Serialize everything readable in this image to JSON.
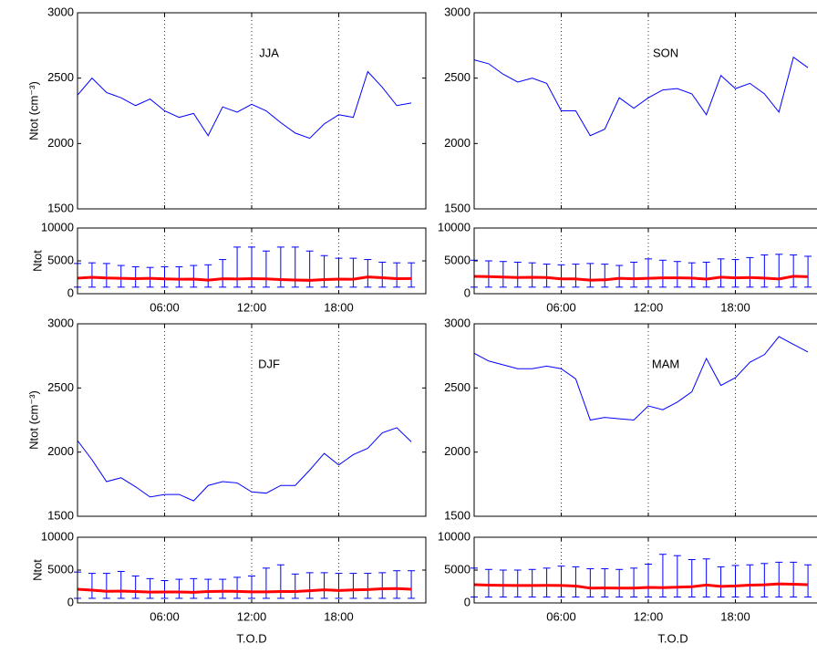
{
  "chart_data": [
    {
      "type": "line",
      "title": "JJA",
      "ylabel": "Ntot (cm⁻³)",
      "color": "#0000ff",
      "xlim": [
        0,
        24
      ],
      "ylim": [
        1500,
        3000
      ],
      "xticks": [
        6,
        12,
        18
      ],
      "yticks": [
        1500,
        2000,
        2500,
        3000
      ],
      "xgrid": true,
      "show_xtick_labels": false,
      "x": [
        0,
        1,
        2,
        3,
        4,
        5,
        6,
        7,
        8,
        9,
        10,
        11,
        12,
        13,
        14,
        15,
        16,
        17,
        18,
        19,
        20,
        21,
        22,
        23
      ],
      "values": [
        2370,
        2500,
        2390,
        2350,
        2290,
        2340,
        2250,
        2200,
        2230,
        2060,
        2280,
        2240,
        2300,
        2250,
        2160,
        2080,
        2040,
        2150,
        2220,
        2200,
        2550,
        2430,
        2290,
        2310
      ]
    },
    {
      "type": "errorbar",
      "ylabel": "Ntot",
      "color": "#ff0000",
      "error_color": "#0000ff",
      "xlim": [
        0,
        24
      ],
      "ylim": [
        0,
        10000
      ],
      "xticks": [
        {
          "value": 6,
          "label": "06:00"
        },
        {
          "value": 12,
          "label": "12:00"
        },
        {
          "value": 18,
          "label": "18:00"
        }
      ],
      "yticks": [
        0,
        5000,
        10000
      ],
      "xgrid": true,
      "show_xtick_labels": true,
      "x": [
        0,
        1,
        2,
        3,
        4,
        5,
        6,
        7,
        8,
        9,
        10,
        11,
        12,
        13,
        14,
        15,
        16,
        17,
        18,
        19,
        20,
        21,
        22,
        23
      ],
      "values": [
        2370,
        2500,
        2390,
        2350,
        2290,
        2340,
        2250,
        2200,
        2230,
        2060,
        2280,
        2240,
        2300,
        2250,
        2160,
        2080,
        2040,
        2150,
        2220,
        2200,
        2550,
        2430,
        2290,
        2310
      ],
      "low": [
        1000,
        1000,
        1000,
        1000,
        1000,
        1000,
        1000,
        1000,
        1000,
        1000,
        1000,
        1000,
        1000,
        1000,
        1000,
        1000,
        1000,
        1000,
        1000,
        1000,
        1000,
        1000,
        1000,
        1000
      ],
      "high": [
        4600,
        4700,
        4600,
        4300,
        4100,
        4000,
        4100,
        4100,
        4300,
        4400,
        5200,
        7100,
        7100,
        6500,
        7100,
        7100,
        6500,
        5800,
        5400,
        5400,
        5200,
        4800,
        4700,
        4700
      ]
    },
    {
      "type": "line",
      "title": "SON",
      "color": "#0000ff",
      "xlim": [
        0,
        24
      ],
      "ylim": [
        1500,
        3000
      ],
      "xticks": [
        6,
        12,
        18
      ],
      "yticks": [
        1500,
        2000,
        2500,
        3000
      ],
      "xgrid": true,
      "show_xtick_labels": false,
      "x": [
        0,
        1,
        2,
        3,
        4,
        5,
        6,
        7,
        8,
        9,
        10,
        11,
        12,
        13,
        14,
        15,
        16,
        17,
        18,
        19,
        20,
        21,
        22,
        23
      ],
      "values": [
        2640,
        2610,
        2530,
        2470,
        2500,
        2460,
        2250,
        2250,
        2060,
        2110,
        2350,
        2270,
        2350,
        2410,
        2420,
        2380,
        2220,
        2520,
        2420,
        2460,
        2380,
        2240,
        2660,
        2580
      ]
    },
    {
      "type": "errorbar",
      "color": "#ff0000",
      "error_color": "#0000ff",
      "xlim": [
        0,
        24
      ],
      "ylim": [
        0,
        10000
      ],
      "xticks": [
        {
          "value": 6,
          "label": "06:00"
        },
        {
          "value": 12,
          "label": "12:00"
        },
        {
          "value": 18,
          "label": "18:00"
        }
      ],
      "yticks": [
        0,
        5000,
        10000
      ],
      "xgrid": true,
      "show_xtick_labels": true,
      "x": [
        0,
        1,
        2,
        3,
        4,
        5,
        6,
        7,
        8,
        9,
        10,
        11,
        12,
        13,
        14,
        15,
        16,
        17,
        18,
        19,
        20,
        21,
        22,
        23
      ],
      "values": [
        2640,
        2610,
        2530,
        2470,
        2500,
        2460,
        2250,
        2250,
        2060,
        2110,
        2350,
        2270,
        2350,
        2410,
        2420,
        2380,
        2220,
        2520,
        2420,
        2460,
        2380,
        2240,
        2660,
        2580
      ],
      "low": [
        1000,
        1000,
        1000,
        1000,
        1000,
        1000,
        1000,
        1000,
        1000,
        1000,
        1000,
        1000,
        1000,
        1000,
        1000,
        1000,
        1000,
        1000,
        1000,
        1000,
        1000,
        1000,
        1000,
        1000
      ],
      "high": [
        5100,
        5000,
        4900,
        4800,
        4700,
        4500,
        4400,
        4500,
        4600,
        4500,
        4300,
        4800,
        5300,
        5100,
        4900,
        4700,
        4800,
        5300,
        5200,
        5500,
        5900,
        6000,
        5900,
        5700
      ]
    },
    {
      "type": "line",
      "title": "DJF",
      "ylabel": "Ntot (cm⁻³)",
      "color": "#0000ff",
      "xlim": [
        0,
        24
      ],
      "ylim": [
        1500,
        3000
      ],
      "xticks": [
        6,
        12,
        18
      ],
      "yticks": [
        1500,
        2000,
        2500,
        3000
      ],
      "xgrid": true,
      "show_xtick_labels": false,
      "x": [
        0,
        1,
        2,
        3,
        4,
        5,
        6,
        7,
        8,
        9,
        10,
        11,
        12,
        13,
        14,
        15,
        16,
        17,
        18,
        19,
        20,
        21,
        22,
        23
      ],
      "values": [
        2090,
        1940,
        1770,
        1800,
        1730,
        1650,
        1670,
        1670,
        1620,
        1740,
        1770,
        1760,
        1690,
        1680,
        1740,
        1740,
        1860,
        1990,
        1900,
        1980,
        2030,
        2150,
        2190,
        2080
      ]
    },
    {
      "type": "errorbar",
      "ylabel": "Ntot",
      "xlabel": "T.O.D",
      "color": "#ff0000",
      "error_color": "#0000ff",
      "xlim": [
        0,
        24
      ],
      "ylim": [
        0,
        10000
      ],
      "xticks": [
        {
          "value": 6,
          "label": "06:00"
        },
        {
          "value": 12,
          "label": "12:00"
        },
        {
          "value": 18,
          "label": "18:00"
        }
      ],
      "yticks": [
        0,
        5000,
        10000
      ],
      "xgrid": true,
      "show_xtick_labels": true,
      "x": [
        0,
        1,
        2,
        3,
        4,
        5,
        6,
        7,
        8,
        9,
        10,
        11,
        12,
        13,
        14,
        15,
        16,
        17,
        18,
        19,
        20,
        21,
        22,
        23
      ],
      "values": [
        2090,
        1940,
        1770,
        1800,
        1730,
        1650,
        1670,
        1670,
        1620,
        1740,
        1770,
        1760,
        1690,
        1680,
        1740,
        1740,
        1860,
        1990,
        1900,
        1980,
        2030,
        2150,
        2190,
        2080
      ],
      "low": [
        700,
        700,
        700,
        700,
        700,
        700,
        700,
        700,
        700,
        700,
        700,
        700,
        700,
        700,
        700,
        700,
        700,
        700,
        700,
        700,
        700,
        700,
        700,
        700
      ],
      "high": [
        4700,
        4500,
        4500,
        4800,
        4100,
        3700,
        3400,
        3600,
        3700,
        3600,
        3600,
        3900,
        4100,
        5300,
        5800,
        4400,
        4600,
        4600,
        4500,
        4500,
        4500,
        4600,
        4900,
        4900
      ]
    },
    {
      "type": "line",
      "title": "MAM",
      "color": "#0000ff",
      "xlim": [
        0,
        24
      ],
      "ylim": [
        1500,
        3000
      ],
      "xticks": [
        6,
        12,
        18
      ],
      "yticks": [
        1500,
        2000,
        2500,
        3000
      ],
      "xgrid": true,
      "show_xtick_labels": false,
      "x": [
        0,
        1,
        2,
        3,
        4,
        5,
        6,
        7,
        8,
        9,
        10,
        11,
        12,
        13,
        14,
        15,
        16,
        17,
        18,
        19,
        20,
        21,
        22,
        23
      ],
      "values": [
        2770,
        2710,
        2680,
        2650,
        2650,
        2670,
        2650,
        2570,
        2250,
        2270,
        2260,
        2250,
        2360,
        2330,
        2390,
        2470,
        2730,
        2520,
        2580,
        2700,
        2760,
        2900,
        2840,
        2780
      ]
    },
    {
      "type": "errorbar",
      "xlabel": "T.O.D",
      "color": "#ff0000",
      "error_color": "#0000ff",
      "xlim": [
        0,
        24
      ],
      "ylim": [
        0,
        10000
      ],
      "xticks": [
        {
          "value": 6,
          "label": "06:00"
        },
        {
          "value": 12,
          "label": "12:00"
        },
        {
          "value": 18,
          "label": "18:00"
        }
      ],
      "yticks": [
        0,
        5000,
        10000
      ],
      "xgrid": true,
      "show_xtick_labels": true,
      "x": [
        0,
        1,
        2,
        3,
        4,
        5,
        6,
        7,
        8,
        9,
        10,
        11,
        12,
        13,
        14,
        15,
        16,
        17,
        18,
        19,
        20,
        21,
        22,
        23
      ],
      "values": [
        2770,
        2710,
        2680,
        2650,
        2650,
        2670,
        2650,
        2570,
        2250,
        2270,
        2260,
        2250,
        2360,
        2330,
        2390,
        2470,
        2730,
        2520,
        2580,
        2700,
        2760,
        2900,
        2840,
        2780
      ],
      "low": [
        900,
        900,
        900,
        900,
        900,
        900,
        900,
        900,
        900,
        900,
        900,
        900,
        900,
        900,
        900,
        900,
        900,
        900,
        900,
        900,
        900,
        900,
        900,
        900
      ],
      "high": [
        5300,
        5100,
        5000,
        5000,
        5100,
        5300,
        5600,
        5500,
        5200,
        5200,
        5100,
        5300,
        5900,
        7400,
        7200,
        6600,
        6700,
        5500,
        5700,
        5800,
        6000,
        6200,
        6200,
        5800
      ]
    }
  ]
}
